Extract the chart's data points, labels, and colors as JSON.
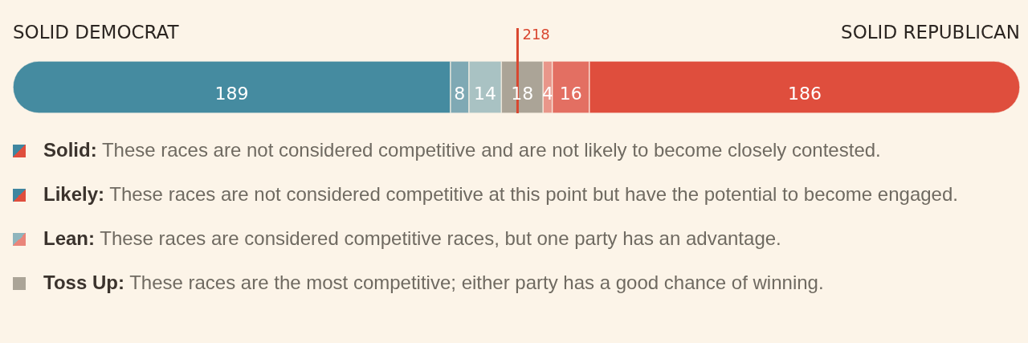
{
  "chart_data": {
    "type": "bar",
    "orientation": "horizontal",
    "stacked": true,
    "categories": [
      null
    ],
    "series": [
      {
        "color": "#458ba0",
        "values": [
          189
        ]
      },
      {
        "color": "#7fa9b4",
        "values": [
          8
        ]
      },
      {
        "color": "#a9c2c3",
        "values": [
          14
        ]
      },
      {
        "color": "#aba497",
        "values": [
          18
        ]
      },
      {
        "color": "#e9968a",
        "values": [
          4
        ]
      },
      {
        "color": "#e36f62",
        "values": [
          16
        ]
      },
      {
        "color": "#df4e3d",
        "values": [
          186
        ]
      }
    ],
    "xlim": [
      0,
      435
    ],
    "tick_labels": false,
    "grid": false,
    "data_labels": true,
    "ref_lines": [
      {
        "axis": "x",
        "value": 218,
        "label": "218",
        "color": "#d9462f"
      }
    ],
    "annotations": [
      "SOLID DEMOCRAT",
      "SOLID REPUBLICAN",
      "Solid: These races are not considered competitive and are not likely to become closely contested.",
      "Likely: These races are not considered competitive at this point but have the potential to become engaged.",
      "Lean: These races are considered competitive races, but one party has an advantage.",
      "Toss Up: These races are the most competitive; either party has a good chance of winning."
    ]
  }
}
